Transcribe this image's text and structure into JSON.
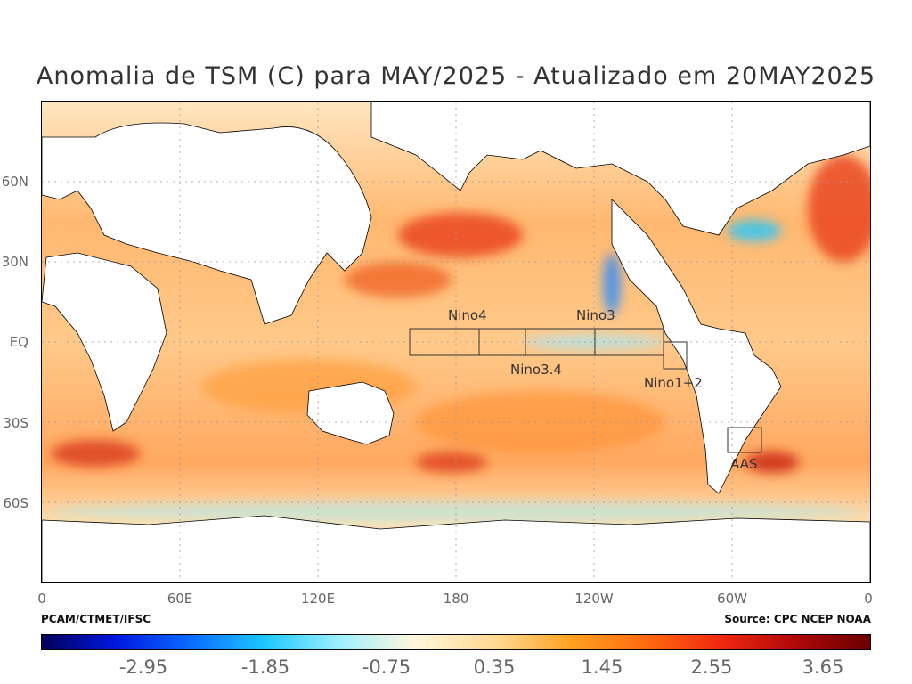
{
  "title": "Anomalia de TSM (C) para MAY/2025 - Atualizado em 20MAY2025",
  "lat_labels": [
    "60N",
    "30N",
    "EQ",
    "30S",
    "60S"
  ],
  "lon_labels": [
    "0",
    "60E",
    "120E",
    "180",
    "120W",
    "60W",
    "0"
  ],
  "regions": [
    "Nino4",
    "Nino3",
    "Nino3.4",
    "Nino1+2",
    "AAS"
  ],
  "credit_left": "PCAM/CTMET/IFSC",
  "credit_right": "Source: CPC NCEP NOAA",
  "colorbar": {
    "labels": [
      "-2.95",
      "-1.85",
      "-0.75",
      "0.35",
      "1.45",
      "2.55",
      "3.65"
    ],
    "colors": [
      "#05005a",
      "#0018e0",
      "#0a6cff",
      "#1ec8ff",
      "#9ff0ff",
      "#fff7dc",
      "#ffd890",
      "#ffa020",
      "#ff6a10",
      "#f02810",
      "#b00808",
      "#6a0000"
    ]
  }
}
